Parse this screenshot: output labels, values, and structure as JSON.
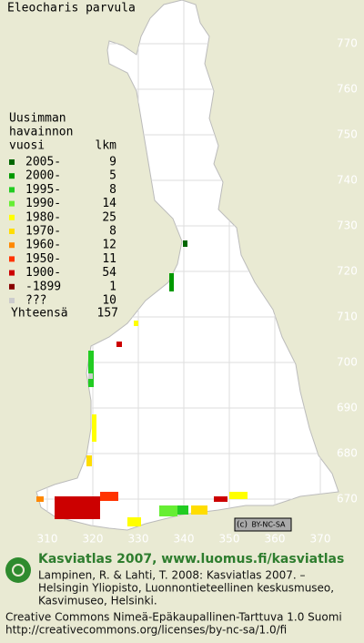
{
  "title": "Eleocharis parvula",
  "legend": {
    "heading": [
      "Uusimman",
      "havainnon",
      "vuosi"
    ],
    "count_heading": "lkm",
    "entries": [
      {
        "label": "2005-",
        "count": 9,
        "color": "#006600"
      },
      {
        "label": "2000-",
        "count": 5,
        "color": "#009900"
      },
      {
        "label": "1995-",
        "count": 8,
        "color": "#22cc22"
      },
      {
        "label": "1990-",
        "count": 14,
        "color": "#66ee33"
      },
      {
        "label": "1980-",
        "count": 25,
        "color": "#ffff00"
      },
      {
        "label": "1970-",
        "count": 8,
        "color": "#ffdd00"
      },
      {
        "label": "1960-",
        "count": 12,
        "color": "#ff8800"
      },
      {
        "label": "1950-",
        "count": 11,
        "color": "#ff3300"
      },
      {
        "label": "1900-",
        "count": 54,
        "color": "#cc0000"
      },
      {
        "label": "-1899",
        "count": 1,
        "color": "#880000"
      },
      {
        "label": "???",
        "count": 10,
        "color": "#cccccc"
      }
    ],
    "total_label": "Yhteensä",
    "total": 157
  },
  "map": {
    "yticks": [
      770,
      760,
      750,
      740,
      730,
      720,
      710,
      700,
      690,
      680,
      670
    ],
    "xticks": [
      310,
      320,
      330,
      340,
      350,
      360,
      370
    ],
    "badge": "BY-NC-SA"
  },
  "footer": {
    "heading": "Kasviatlas 2007, www.luomus.fi/kasviatlas",
    "citation": [
      "Lampinen, R. & Lahti, T. 2008: Kasviatlas 2007. –",
      "Helsingin Yliopisto, Luonnontieteellinen keskusmuseo,",
      "Kasvimuseo, Helsinki."
    ],
    "license": [
      "Creative Commons Nimeä-Epäkaupallinen-Tarttuva 1.0 Suomi",
      "http://creativecommons.org/licenses/by-nc-sa/1.0/fi"
    ]
  }
}
